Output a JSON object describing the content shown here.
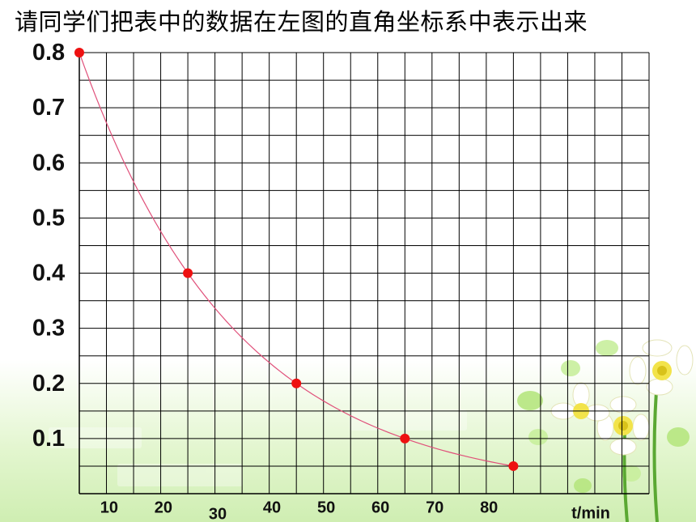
{
  "page": {
    "title": "请同学们把表中的数据在左图的直角坐标系中表示出来"
  },
  "chart_data": {
    "type": "scatter",
    "x": [
      0,
      20,
      40,
      60,
      80
    ],
    "y": [
      0.8,
      0.4,
      0.2,
      0.1,
      0.05
    ],
    "smooth_curve": true,
    "xlabel": "t/min",
    "ylabel": "",
    "x_ticks": [
      "10",
      "20",
      "30",
      "40",
      "50",
      "60",
      "70",
      "80"
    ],
    "y_ticks": [
      "0.8",
      "0.7",
      "0.6",
      "0.5",
      "0.4",
      "0.3",
      "0.2",
      "0.1"
    ],
    "xlim": [
      0,
      100
    ],
    "ylim": [
      0,
      0.8
    ],
    "grid": true,
    "colors": {
      "point": "#ee1111",
      "curve": "#e0507a",
      "grid": "#000000"
    }
  }
}
